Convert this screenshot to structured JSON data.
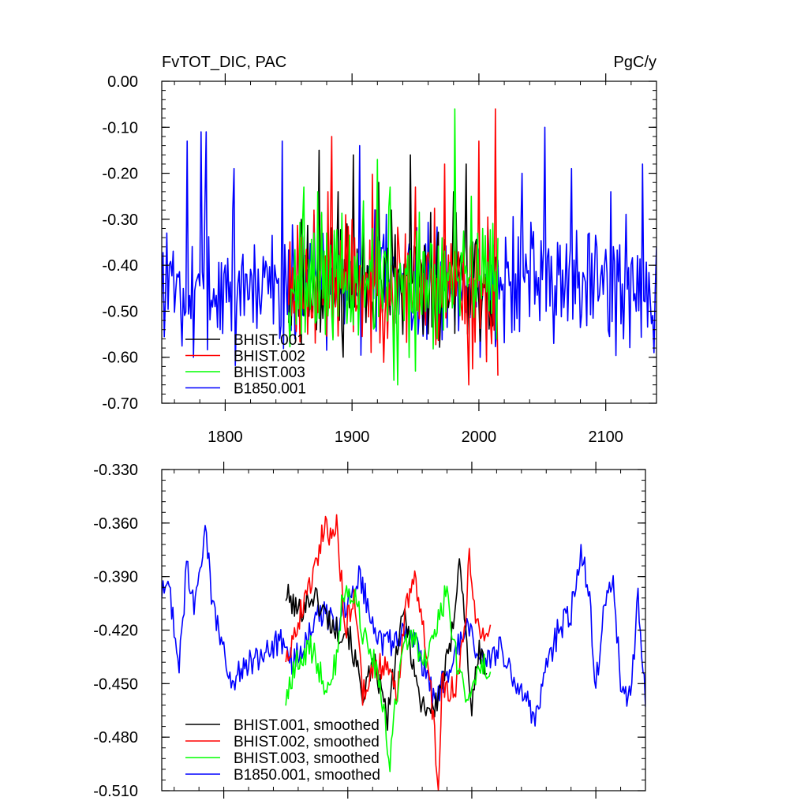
{
  "chart_data": [
    {
      "type": "line",
      "title": "FvTOT_DIC, PAC",
      "units": "PgC/y",
      "xlim": [
        1750,
        2140
      ],
      "ylim": [
        -0.7,
        0.0
      ],
      "x_ticks": [
        1800,
        1900,
        2000,
        2100
      ],
      "x_tick_labels": [
        "1800",
        "1900",
        "2000",
        "2100"
      ],
      "y_ticks": [
        0.0,
        -0.1,
        -0.2,
        -0.3,
        -0.4,
        -0.5,
        -0.6,
        -0.7
      ],
      "y_tick_labels": [
        "0.00",
        "-0.10",
        "-0.20",
        "-0.30",
        "-0.40",
        "-0.50",
        "-0.60",
        "-0.70"
      ],
      "grid": false,
      "legend_position": "bottom-left",
      "series": [
        {
          "name": "BHIST.001",
          "color": "#000000",
          "x_start": 1850,
          "x_end": 2015,
          "mean": -0.44,
          "sd": 0.075,
          "seed": 11,
          "peaks": [
            [
              1860,
              -0.3
            ],
            [
              1874,
              -0.15
            ],
            [
              1889,
              -0.24
            ],
            [
              1896,
              -0.31
            ],
            [
              1901,
              -0.16
            ],
            [
              1921,
              -0.22
            ],
            [
              1931,
              -0.28
            ],
            [
              1940,
              -0.55
            ],
            [
              1946,
              -0.16
            ],
            [
              1956,
              -0.55
            ],
            [
              1964,
              -0.52
            ],
            [
              1980,
              -0.24
            ],
            [
              1990,
              -0.18
            ],
            [
              2003,
              -0.44
            ]
          ]
        },
        {
          "name": "BHIST.002",
          "color": "#ff0000",
          "x_start": 1850,
          "x_end": 2015,
          "mean": -0.44,
          "sd": 0.08,
          "seed": 23,
          "peaks": [
            [
              1870,
              -0.28
            ],
            [
              1881,
              -0.24
            ],
            [
              1884,
              -0.12
            ],
            [
              1895,
              -0.29
            ],
            [
              1902,
              -0.34
            ],
            [
              1919,
              -0.28
            ],
            [
              1950,
              -0.23
            ],
            [
              1958,
              -0.53
            ],
            [
              1973,
              -0.18
            ],
            [
              1992,
              -0.66
            ],
            [
              2000,
              -0.13
            ],
            [
              2006,
              -0.61
            ],
            [
              2013,
              -0.06
            ],
            [
              2015,
              -0.64
            ]
          ]
        },
        {
          "name": "BHIST.003",
          "color": "#00ff00",
          "x_start": 1850,
          "x_end": 2015,
          "mean": -0.44,
          "sd": 0.075,
          "seed": 37,
          "peaks": [
            [
              1862,
              -0.23
            ],
            [
              1870,
              -0.33
            ],
            [
              1873,
              -0.24
            ],
            [
              1880,
              -0.33
            ],
            [
              1909,
              -0.26
            ],
            [
              1916,
              -0.32
            ],
            [
              1920,
              -0.17
            ],
            [
              1930,
              -0.23
            ],
            [
              1933,
              -0.65
            ],
            [
              1936,
              -0.66
            ],
            [
              1950,
              -0.63
            ],
            [
              1967,
              -0.56
            ],
            [
              1981,
              -0.06
            ],
            [
              1994,
              -0.25
            ],
            [
              2003,
              -0.32
            ]
          ]
        },
        {
          "name": "B1850.001",
          "color": "#0000ff",
          "x_start": 1750,
          "x_end": 2140,
          "mean": -0.44,
          "sd": 0.075,
          "seed": 5,
          "peaks": [
            [
              1754,
              -0.33
            ],
            [
              1770,
              -0.13
            ],
            [
              1775,
              -0.6
            ],
            [
              1781,
              -0.11
            ],
            [
              1784,
              -0.27
            ],
            [
              1785,
              -0.11
            ],
            [
              1800,
              -0.4
            ],
            [
              1807,
              -0.19
            ],
            [
              1839,
              -0.4
            ],
            [
              1845,
              -0.13
            ],
            [
              1855,
              -0.56
            ],
            [
              1862,
              -0.51
            ],
            [
              1872,
              -0.43
            ],
            [
              1906,
              -0.14
            ],
            [
              2034,
              -0.2
            ],
            [
              2052,
              -0.1
            ],
            [
              2059,
              -0.57
            ],
            [
              2073,
              -0.19
            ],
            [
              2087,
              -0.33
            ],
            [
              2104,
              -0.24
            ],
            [
              2114,
              -0.56
            ],
            [
              2129,
              -0.18
            ],
            [
              2138,
              -0.59
            ],
            [
              2140,
              -0.36
            ]
          ]
        }
      ]
    },
    {
      "type": "line",
      "title": "",
      "units": "",
      "xlim": [
        1750,
        2140
      ],
      "ylim": [
        -0.51,
        -0.33
      ],
      "x_ticks": [
        1800,
        1900,
        2000,
        2100
      ],
      "x_tick_labels": [],
      "y_ticks": [
        -0.33,
        -0.36,
        -0.39,
        -0.42,
        -0.45,
        -0.48,
        -0.51
      ],
      "y_tick_labels": [
        "-0.330",
        "-0.360",
        "-0.390",
        "-0.420",
        "-0.450",
        "-0.480",
        "-0.510"
      ],
      "grid": false,
      "legend_position": "bottom-left",
      "series": [
        {
          "name": "BHIST.001, smoothed",
          "color": "#000000",
          "x_start": 1850,
          "x_end": 2012,
          "mean": -0.44,
          "sd": 0.008,
          "seed": 101,
          "anchors": [
            [
              1850,
              -0.4
            ],
            [
              1860,
              -0.41
            ],
            [
              1872,
              -0.4
            ],
            [
              1890,
              -0.42
            ],
            [
              1900,
              -0.42
            ],
            [
              1912,
              -0.455
            ],
            [
              1922,
              -0.44
            ],
            [
              1932,
              -0.47
            ],
            [
              1940,
              -0.43
            ],
            [
              1946,
              -0.41
            ],
            [
              1958,
              -0.46
            ],
            [
              1970,
              -0.465
            ],
            [
              1983,
              -0.43
            ],
            [
              1990,
              -0.377
            ],
            [
              1996,
              -0.43
            ],
            [
              2000,
              -0.465
            ],
            [
              2006,
              -0.43
            ],
            [
              2012,
              -0.445
            ]
          ]
        },
        {
          "name": "BHIST.002, smoothed",
          "color": "#ff0000",
          "x_start": 1850,
          "x_end": 2015,
          "mean": -0.44,
          "sd": 0.008,
          "seed": 202,
          "anchors": [
            [
              1850,
              -0.435
            ],
            [
              1858,
              -0.42
            ],
            [
              1866,
              -0.4
            ],
            [
              1872,
              -0.39
            ],
            [
              1880,
              -0.363
            ],
            [
              1886,
              -0.365
            ],
            [
              1891,
              -0.36
            ],
            [
              1898,
              -0.42
            ],
            [
              1905,
              -0.4
            ],
            [
              1912,
              -0.455
            ],
            [
              1920,
              -0.44
            ],
            [
              1930,
              -0.44
            ],
            [
              1940,
              -0.455
            ],
            [
              1947,
              -0.405
            ],
            [
              1953,
              -0.39
            ],
            [
              1960,
              -0.41
            ],
            [
              1965,
              -0.44
            ],
            [
              1970,
              -0.48
            ],
            [
              1973,
              -0.505
            ],
            [
              1976,
              -0.45
            ],
            [
              1986,
              -0.455
            ],
            [
              1994,
              -0.418
            ],
            [
              1998,
              -0.38
            ],
            [
              2005,
              -0.42
            ],
            [
              2015,
              -0.418
            ]
          ]
        },
        {
          "name": "BHIST.003, smoothed",
          "color": "#00ff00",
          "x_start": 1850,
          "x_end": 2015,
          "mean": -0.44,
          "sd": 0.008,
          "seed": 303,
          "anchors": [
            [
              1850,
              -0.46
            ],
            [
              1858,
              -0.44
            ],
            [
              1870,
              -0.43
            ],
            [
              1882,
              -0.45
            ],
            [
              1890,
              -0.44
            ],
            [
              1896,
              -0.4
            ],
            [
              1905,
              -0.4
            ],
            [
              1912,
              -0.42
            ],
            [
              1922,
              -0.44
            ],
            [
              1930,
              -0.47
            ],
            [
              1933,
              -0.5
            ],
            [
              1942,
              -0.44
            ],
            [
              1951,
              -0.42
            ],
            [
              1960,
              -0.44
            ],
            [
              1970,
              -0.42
            ],
            [
              1976,
              -0.41
            ],
            [
              1980,
              -0.395
            ],
            [
              1988,
              -0.44
            ],
            [
              1996,
              -0.46
            ],
            [
              2005,
              -0.44
            ],
            [
              2015,
              -0.44
            ]
          ]
        },
        {
          "name": "B1850.001, smoothed",
          "color": "#0000ff",
          "x_start": 1750,
          "x_end": 2140,
          "mean": -0.44,
          "sd": 0.008,
          "seed": 404,
          "anchors": [
            [
              1750,
              -0.4
            ],
            [
              1756,
              -0.395
            ],
            [
              1764,
              -0.44
            ],
            [
              1770,
              -0.385
            ],
            [
              1776,
              -0.405
            ],
            [
              1782,
              -0.385
            ],
            [
              1785,
              -0.36
            ],
            [
              1790,
              -0.4
            ],
            [
              1796,
              -0.42
            ],
            [
              1806,
              -0.45
            ],
            [
              1818,
              -0.44
            ],
            [
              1830,
              -0.435
            ],
            [
              1845,
              -0.425
            ],
            [
              1856,
              -0.44
            ],
            [
              1868,
              -0.42
            ],
            [
              1880,
              -0.41
            ],
            [
              1892,
              -0.42
            ],
            [
              1904,
              -0.395
            ],
            [
              1910,
              -0.39
            ],
            [
              1918,
              -0.41
            ],
            [
              1930,
              -0.43
            ],
            [
              1944,
              -0.42
            ],
            [
              1956,
              -0.43
            ],
            [
              1970,
              -0.46
            ],
            [
              1982,
              -0.44
            ],
            [
              1996,
              -0.42
            ],
            [
              2010,
              -0.44
            ],
            [
              2024,
              -0.43
            ],
            [
              2034,
              -0.45
            ],
            [
              2045,
              -0.46
            ],
            [
              2052,
              -0.47
            ],
            [
              2060,
              -0.44
            ],
            [
              2070,
              -0.42
            ],
            [
              2080,
              -0.41
            ],
            [
              2088,
              -0.375
            ],
            [
              2094,
              -0.395
            ],
            [
              2100,
              -0.45
            ],
            [
              2108,
              -0.4
            ],
            [
              2114,
              -0.395
            ],
            [
              2120,
              -0.45
            ],
            [
              2128,
              -0.46
            ],
            [
              2134,
              -0.4
            ],
            [
              2140,
              -0.462
            ]
          ]
        }
      ]
    }
  ]
}
